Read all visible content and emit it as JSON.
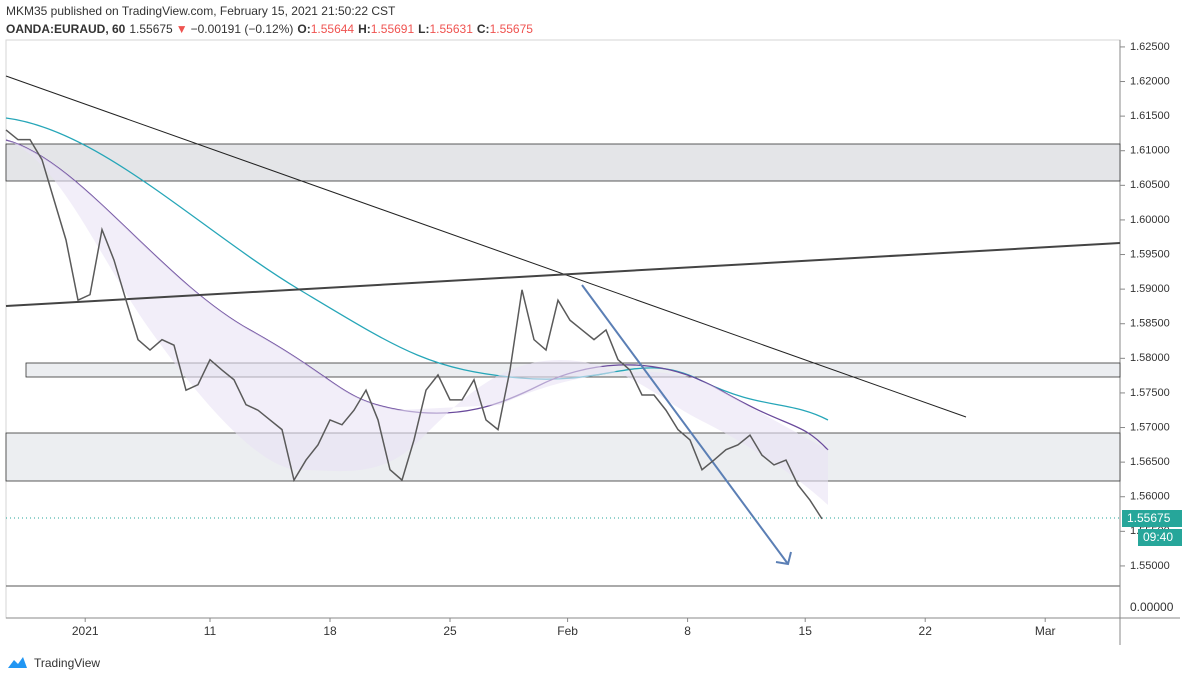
{
  "header": {
    "publisher": "MKM35 published on TradingView.com, February 15, 2021 21:50:22 CST",
    "symbol": "OANDA:EURAUD, 60",
    "last": "1.55675",
    "arrow": "▼",
    "change": "−0.00191 (−0.12%)",
    "o_label": "O:",
    "o": "1.55644",
    "h_label": "H:",
    "h": "1.55691",
    "l_label": "L:",
    "l": "1.55631",
    "c_label": "C:",
    "c": "1.55675"
  },
  "chart_data": {
    "type": "line",
    "series": [
      {
        "color": "#5a5a5a",
        "values": [
          1.613,
          1.6116,
          1.6116,
          1.6087,
          1.6029,
          1.5971,
          1.5884,
          1.5892,
          1.5986,
          1.5942,
          1.5884,
          1.5827,
          1.5812,
          1.5827,
          1.5819,
          1.5754,
          1.5762,
          1.5798,
          1.5783,
          1.5769,
          1.5733,
          1.5725,
          1.5711,
          1.5697,
          1.5624,
          1.5653,
          1.5675,
          1.5711,
          1.5704,
          1.5725,
          1.5754,
          1.5711,
          1.5639,
          1.5624,
          1.5682,
          1.5754,
          1.5776,
          1.574,
          1.574,
          1.5769,
          1.5711,
          1.5697,
          1.5783,
          1.5899,
          1.5827,
          1.5812,
          1.5884,
          1.5855,
          1.5841,
          1.5827,
          1.5841,
          1.5798,
          1.5783,
          1.5747,
          1.5747,
          1.5725,
          1.5697,
          1.5682,
          1.5639,
          1.5653,
          1.5668,
          1.5675,
          1.5689,
          1.566,
          1.5646,
          1.5653,
          1.5617,
          1.5595,
          1.5568
        ]
      }
    ],
    "ylim": [
      1.5471,
      1.626
    ],
    "yticks": [
      {
        "value": 1.55,
        "label": "1.55000"
      },
      {
        "value": 1.555,
        "label": "1.55500"
      },
      {
        "value": 1.56,
        "label": "1.56000"
      },
      {
        "value": 1.565,
        "label": "1.56500"
      },
      {
        "value": 1.57,
        "label": "1.57000"
      },
      {
        "value": 1.575,
        "label": "1.57500"
      },
      {
        "value": 1.58,
        "label": "1.58000"
      },
      {
        "value": 1.585,
        "label": "1.58500"
      },
      {
        "value": 1.59,
        "label": "1.59000"
      },
      {
        "value": 1.595,
        "label": "1.59500"
      },
      {
        "value": 1.6,
        "label": "1.60000"
      },
      {
        "value": 1.605,
        "label": "1.60500"
      },
      {
        "value": 1.61,
        "label": "1.61000"
      },
      {
        "value": 1.615,
        "label": "1.61500"
      },
      {
        "value": 1.62,
        "label": "1.62000"
      },
      {
        "value": 1.625,
        "label": "1.62500"
      }
    ],
    "xticks": [
      {
        "value": 6.6,
        "label": "2021"
      },
      {
        "value": 17,
        "label": "11"
      },
      {
        "value": 27,
        "label": "18"
      },
      {
        "value": 37,
        "label": "25"
      },
      {
        "value": 46.8,
        "label": "Feb"
      },
      {
        "value": 56.8,
        "label": "8"
      },
      {
        "value": 66.6,
        "label": "15"
      },
      {
        "value": 76.6,
        "label": "22"
      },
      {
        "value": 86.6,
        "label": "Mar"
      }
    ],
    "lower_pane_label": "0.00000",
    "price_tag": "1.55675",
    "countdown": "09:40"
  },
  "footer": "TradingView"
}
